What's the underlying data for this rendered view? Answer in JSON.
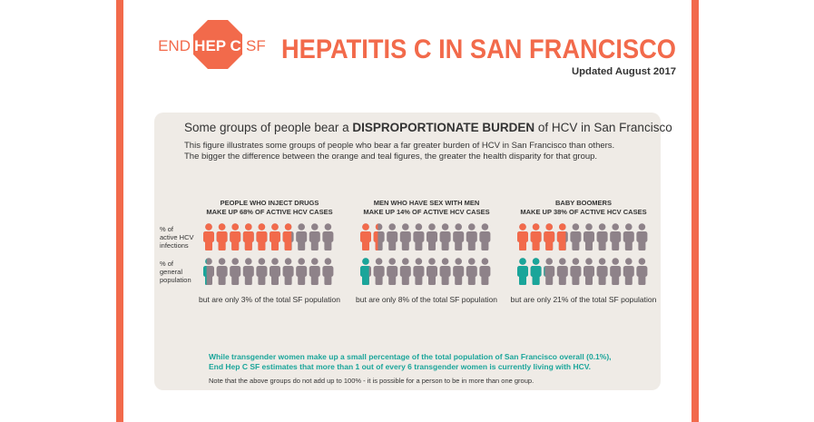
{
  "header": {
    "logo": {
      "left": "END",
      "center": "HEP C",
      "right": "SF"
    },
    "title": "HEPATITIS C IN SAN FRANCISCO",
    "updated": "Updated August 2017"
  },
  "panel": {
    "heading": {
      "before": "Some groups of people bear a ",
      "bold": "DISPROPORTIONATE BURDEN",
      "after": " of HCV in San Francisco"
    },
    "description": [
      "This figure illustrates some groups of people who bear a far greater burden of HCV in San Francisco than others.",
      "The bigger the difference between the orange and teal figures, the greater the health disparity for that group."
    ],
    "row_labels": [
      [
        "% of",
        "active HCV",
        "infections"
      ],
      [
        "% of",
        "general",
        "population"
      ]
    ],
    "groups": [
      {
        "name": "PEOPLE WHO INJECT DRUGS",
        "hcv": {
          "before": "MAKE UP ",
          "value": 68,
          "after": "% OF ACTIVE HCV CASES"
        },
        "population": {
          "before": "but are only ",
          "value": 3,
          "after": "% of the total SF population"
        }
      },
      {
        "name": "MEN WHO HAVE SEX WITH MEN",
        "hcv": {
          "before": "MAKE UP ",
          "value": 14,
          "after": "% OF ACTIVE HCV CASES"
        },
        "population": {
          "before": "but are only ",
          "value": 8,
          "after": "% of the total SF population"
        }
      },
      {
        "name": "BABY BOOMERS",
        "hcv": {
          "before": "MAKE UP ",
          "value": 38,
          "after": "% OF ACTIVE HCV CASES"
        },
        "population": {
          "before": "but are only ",
          "value": 21,
          "after": "% of the total SF population"
        }
      }
    ],
    "colors": {
      "hcv": "#f26a4b",
      "population": "#1aa59a",
      "rest": "#8e8289"
    },
    "callout": [
      "While transgender women make up a small percentage of the total population of San Francisco overall (0.1%),",
      "End Hep C SF estimates that more than 1 out of every 6 transgender women is currently living with HCV."
    ],
    "note": "Note that the above groups do not add up to 100% - it is possible for a person to be in more than one group."
  }
}
